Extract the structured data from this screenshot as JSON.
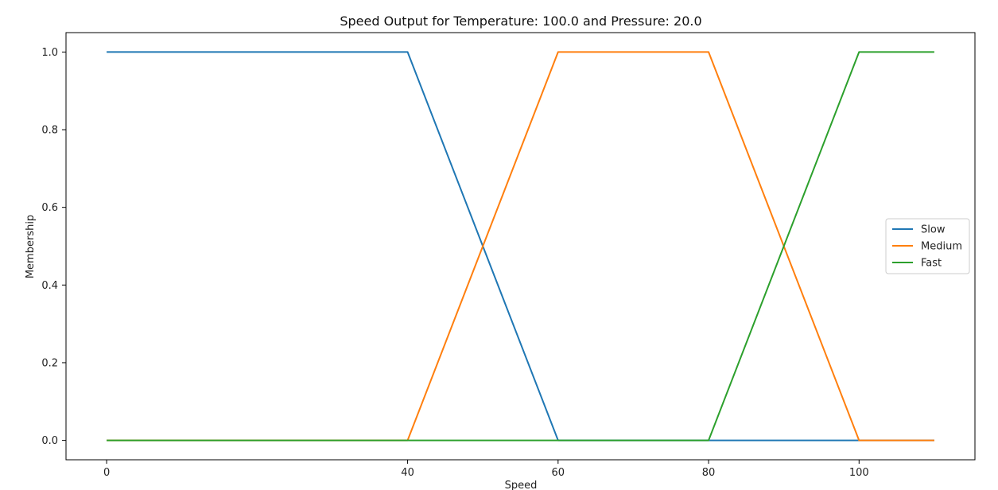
{
  "chart_data": {
    "type": "line",
    "title": "Speed Output for Temperature: 100.0 and Pressure: 20.0",
    "xlabel": "Speed",
    "ylabel": "Membership",
    "xlim": [
      -5.4,
      115.4
    ],
    "ylim": [
      -0.05,
      1.05
    ],
    "xticks": [
      0,
      40,
      60,
      80,
      100
    ],
    "yticks": [
      0.0,
      0.2,
      0.4,
      0.6,
      0.8,
      1.0
    ],
    "ytick_labels": [
      "0.0",
      "0.2",
      "0.4",
      "0.6",
      "0.8",
      "1.0"
    ],
    "grid": false,
    "legend_position": "center-right",
    "series": [
      {
        "name": "Slow",
        "color": "#1f77b4",
        "x": [
          0,
          40,
          60,
          110
        ],
        "y": [
          1,
          1,
          0,
          0
        ]
      },
      {
        "name": "Medium",
        "color": "#ff7f0e",
        "x": [
          0,
          40,
          60,
          80,
          100,
          110
        ],
        "y": [
          0,
          0,
          1,
          1,
          0,
          0
        ]
      },
      {
        "name": "Fast",
        "color": "#2ca02c",
        "x": [
          0,
          80,
          100,
          110
        ],
        "y": [
          0,
          0,
          1,
          1
        ]
      }
    ]
  }
}
